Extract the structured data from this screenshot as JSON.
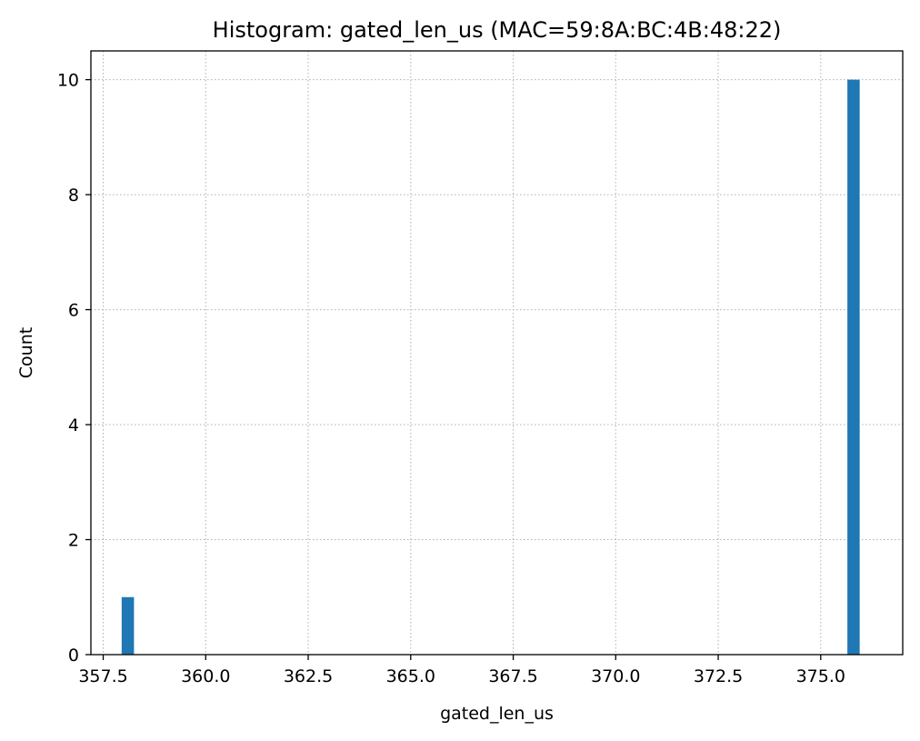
{
  "chart_data": {
    "type": "bar",
    "title": "Histogram: gated_len_us (MAC=59:8A:BC:4B:48:22)",
    "xlabel": "gated_len_us",
    "ylabel": "Count",
    "xlim": [
      357.2,
      377.0
    ],
    "ylim": [
      0,
      10.5
    ],
    "xticks": [
      357.5,
      360.0,
      362.5,
      365.0,
      367.5,
      370.0,
      372.5,
      375.0
    ],
    "xtick_labels": [
      "357.5",
      "360.0",
      "362.5",
      "365.0",
      "367.5",
      "370.0",
      "372.5",
      "375.0"
    ],
    "yticks": [
      0,
      2,
      4,
      6,
      8,
      10
    ],
    "ytick_labels": [
      "0",
      "2",
      "4",
      "6",
      "8",
      "10"
    ],
    "bin_width": 0.3,
    "bars": [
      {
        "x": 358.1,
        "value": 1
      },
      {
        "x": 375.8,
        "value": 10
      }
    ],
    "grid": true,
    "bar_color": "#1f77b4"
  }
}
